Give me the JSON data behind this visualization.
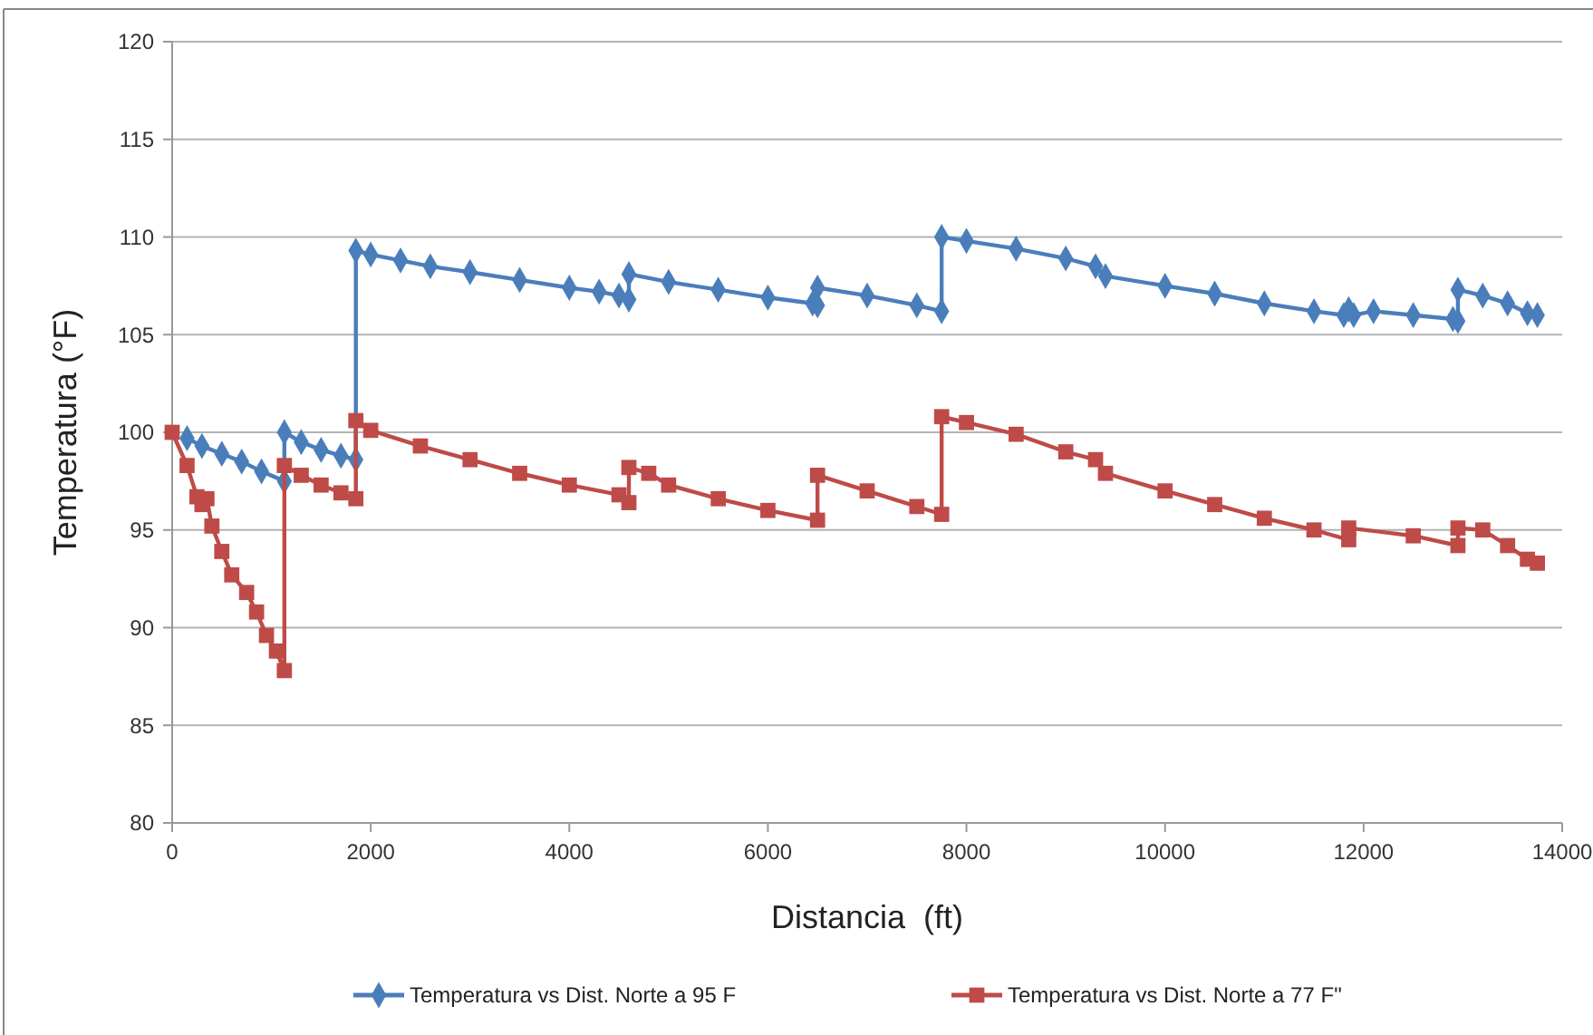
{
  "chart_data": {
    "type": "line",
    "xlabel": "Distancia  (ft)",
    "ylabel": "Temperatura (°F)",
    "xlim": [
      0,
      14000
    ],
    "xticks": [
      0,
      2000,
      4000,
      6000,
      8000,
      10000,
      12000,
      14000
    ],
    "ylim": [
      80,
      120
    ],
    "yticks": [
      80,
      85,
      90,
      95,
      100,
      105,
      110,
      115,
      120
    ],
    "grid": "y",
    "legend": "bottom",
    "line_style": "solid",
    "series": [
      {
        "name": "Temperatura vs Dist. Norte a 95 F",
        "color": "#4a7ebb",
        "marker": "diamond",
        "x": [
          150,
          300,
          500,
          700,
          900,
          1130,
          1130,
          1300,
          1500,
          1700,
          1850,
          1850,
          2000,
          2300,
          2600,
          3000,
          3500,
          4000,
          4300,
          4500,
          4600,
          4600,
          5000,
          5500,
          6000,
          6450,
          6500,
          6500,
          7000,
          7500,
          7750,
          7750,
          8000,
          8500,
          9000,
          9300,
          9400,
          10000,
          10500,
          11000,
          11500,
          11800,
          11850,
          11900,
          12100,
          12500,
          12900,
          12950,
          12950,
          13200,
          13450,
          13650,
          13750
        ],
        "values": [
          99.7,
          99.3,
          98.9,
          98.5,
          98.0,
          97.5,
          100,
          99.5,
          99.1,
          98.8,
          98.6,
          109.3,
          109.1,
          108.8,
          108.5,
          108.2,
          107.8,
          107.4,
          107.2,
          107.0,
          106.8,
          108.1,
          107.7,
          107.3,
          106.9,
          106.6,
          106.5,
          107.4,
          107.0,
          106.5,
          106.2,
          110.0,
          109.8,
          109.4,
          108.9,
          108.5,
          108.0,
          107.5,
          107.1,
          106.6,
          106.2,
          106.0,
          106.3,
          106.0,
          106.2,
          106.0,
          105.8,
          105.7,
          107.3,
          107.0,
          106.6,
          106.1,
          106.0
        ]
      },
      {
        "name": "Temperatura vs Dist. Norte a 77 F\"",
        "color": "#be4b48",
        "marker": "square",
        "x": [
          0,
          150,
          250,
          300,
          350,
          400,
          500,
          600,
          750,
          850,
          950,
          1050,
          1130,
          1130,
          1300,
          1500,
          1700,
          1850,
          1850,
          2000,
          2500,
          3000,
          3500,
          4000,
          4500,
          4600,
          4600,
          4800,
          5000,
          5500,
          6000,
          6500,
          6500,
          7000,
          7500,
          7750,
          7750,
          8000,
          8500,
          9000,
          9300,
          9400,
          10000,
          10500,
          11000,
          11500,
          11850,
          11850,
          12500,
          12950,
          12950,
          13200,
          13450,
          13650,
          13750
        ],
        "values": [
          100,
          98.3,
          96.7,
          96.3,
          96.6,
          95.2,
          93.9,
          92.7,
          91.8,
          90.8,
          89.6,
          88.8,
          87.8,
          98.3,
          97.8,
          97.3,
          96.9,
          96.6,
          100.6,
          100.1,
          99.3,
          98.6,
          97.9,
          97.3,
          96.8,
          96.4,
          98.2,
          97.9,
          97.3,
          96.6,
          96.0,
          95.5,
          97.8,
          97.0,
          96.2,
          95.8,
          100.8,
          100.5,
          99.9,
          99.0,
          98.6,
          97.9,
          97.0,
          96.3,
          95.6,
          95.0,
          94.5,
          95.1,
          94.7,
          94.2,
          95.1,
          95.0,
          94.2,
          93.5,
          93.3
        ]
      }
    ]
  }
}
